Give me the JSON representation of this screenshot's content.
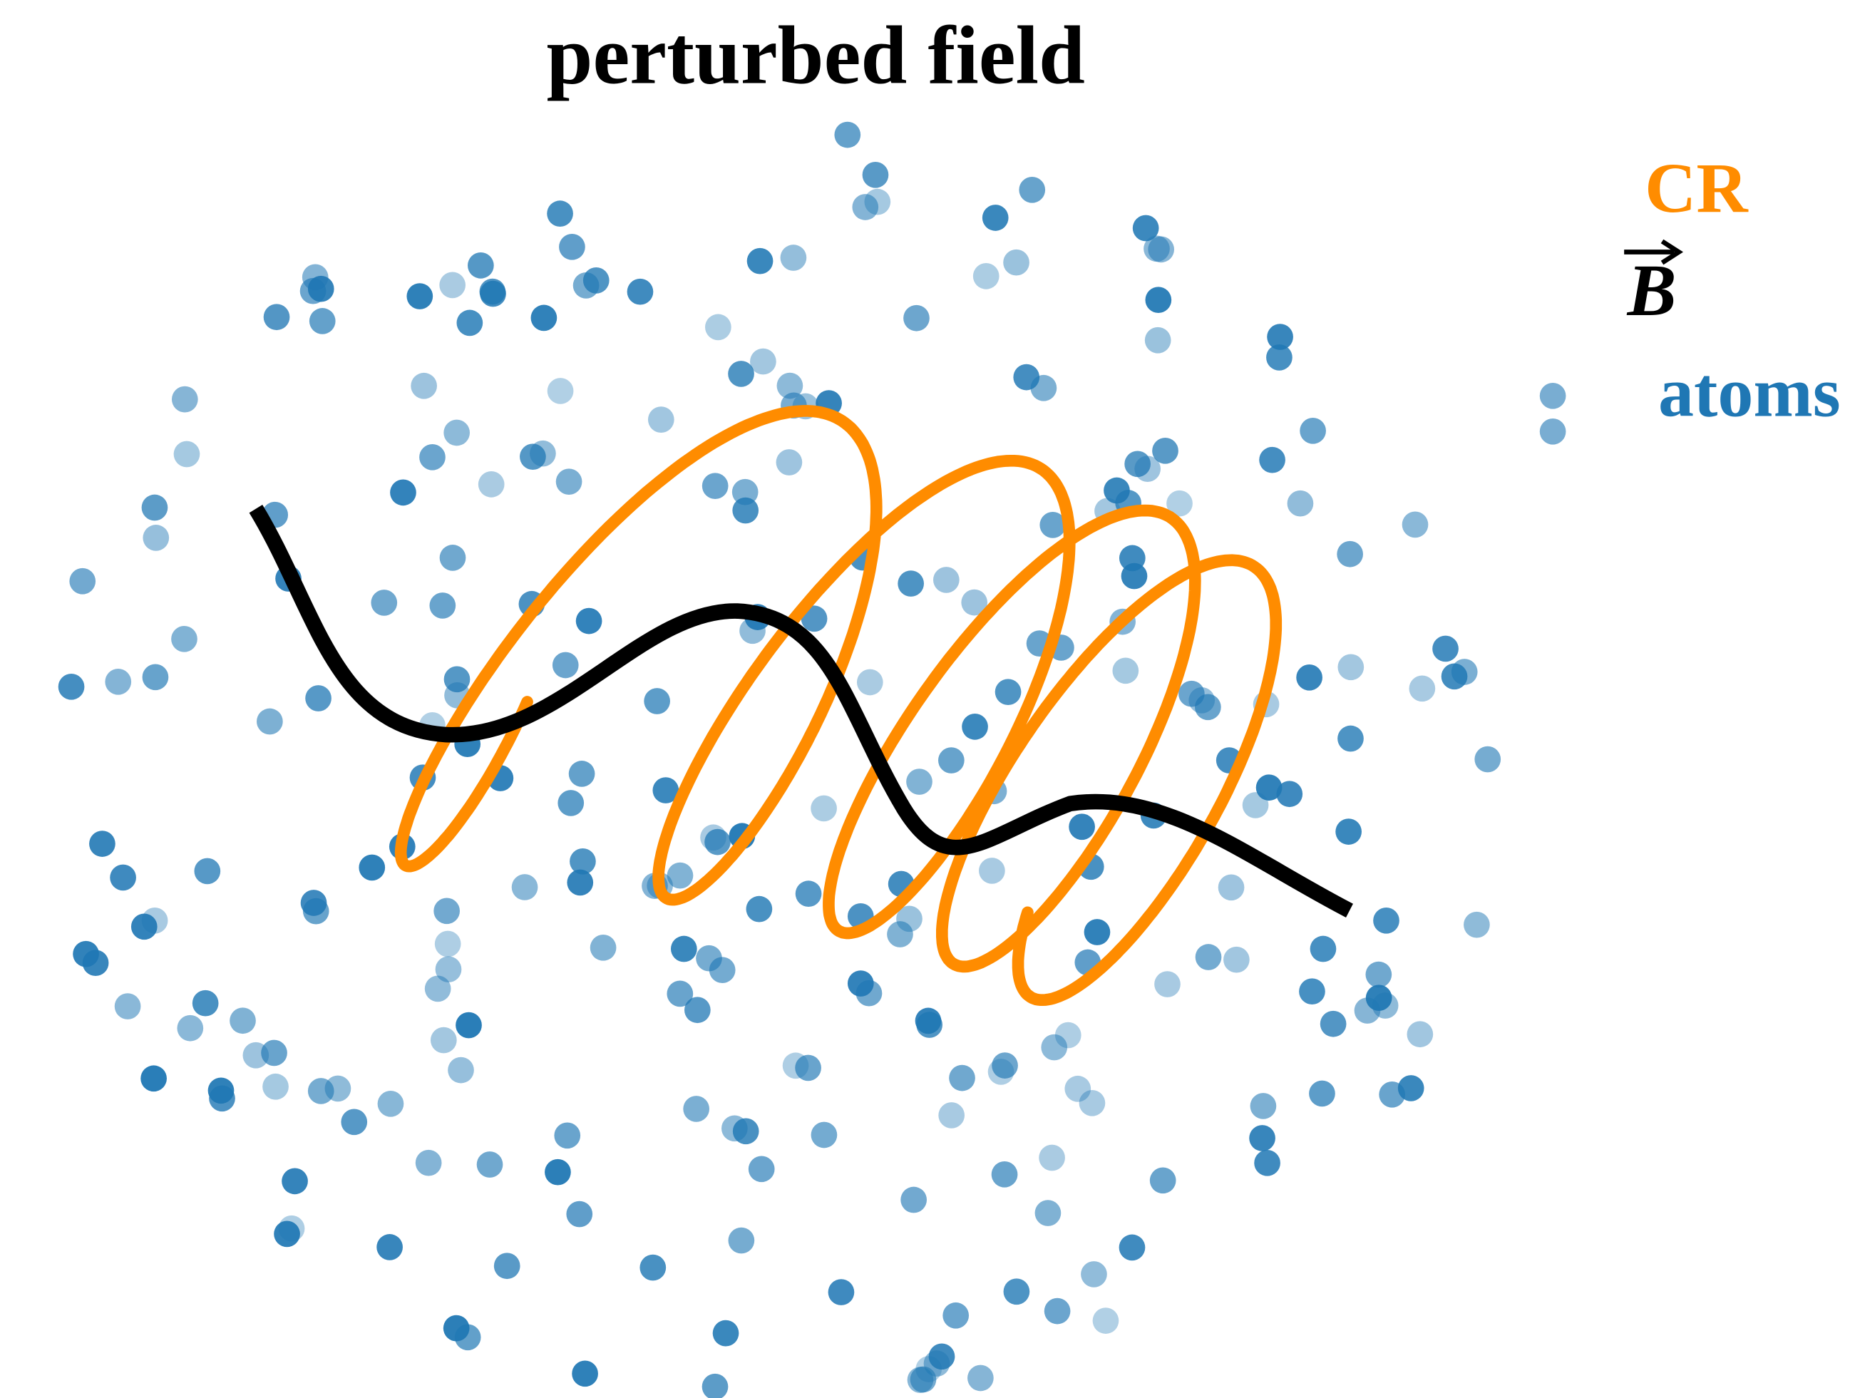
{
  "title": "perturbed field",
  "legend": [
    {
      "label": "CR"
    },
    {
      "label": "B"
    },
    {
      "label": "atoms"
    }
  ]
}
